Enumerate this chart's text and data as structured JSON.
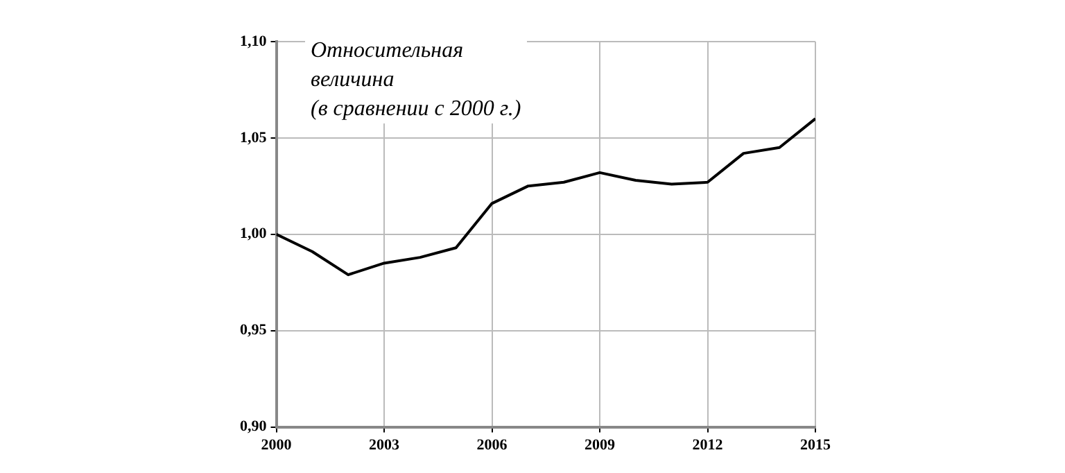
{
  "chart_data": {
    "type": "line",
    "ylabel": "Относительная\nвеличина\n(в сравнении с 2000 г.)",
    "x": [
      2000,
      2001,
      2002,
      2003,
      2004,
      2005,
      2006,
      2007,
      2008,
      2009,
      2010,
      2011,
      2012,
      2013,
      2014,
      2015
    ],
    "series": [
      {
        "color": "#000000",
        "values": [
          1.0,
          0.991,
          0.979,
          0.985,
          0.988,
          0.993,
          1.016,
          1.025,
          1.027,
          1.032,
          1.028,
          1.026,
          1.027,
          1.042,
          1.045,
          1.06
        ]
      }
    ],
    "xlim": [
      2000,
      2015
    ],
    "xticks": [
      2000,
      2003,
      2006,
      2009,
      2012,
      2015
    ],
    "ylim": [
      0.9,
      1.1
    ],
    "yticks": [
      {
        "value": 0.9,
        "label": "0,90"
      },
      {
        "value": 0.95,
        "label": "0,95"
      },
      {
        "value": 1.0,
        "label": "1,00"
      },
      {
        "value": 1.05,
        "label": "1,05"
      },
      {
        "value": 1.1,
        "label": "1,10"
      }
    ],
    "grid": true,
    "marker": "none",
    "line_style": "solid",
    "legend": false
  }
}
